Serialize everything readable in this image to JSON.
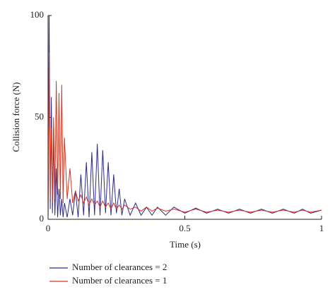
{
  "chart_data": {
    "type": "line",
    "xlabel": "Time (s)",
    "ylabel": "Collision force (N)",
    "x": [
      0,
      0.004,
      0.008,
      0.012,
      0.016,
      0.02,
      0.025,
      0.03,
      0.035,
      0.04,
      0.045,
      0.05,
      0.055,
      0.06,
      0.07,
      0.08,
      0.09,
      0.1,
      0.11,
      0.12,
      0.13,
      0.14,
      0.15,
      0.16,
      0.17,
      0.18,
      0.19,
      0.2,
      0.21,
      0.22,
      0.23,
      0.24,
      0.25,
      0.26,
      0.27,
      0.28,
      0.3,
      0.32,
      0.34,
      0.36,
      0.38,
      0.4,
      0.43,
      0.46,
      0.5,
      0.54,
      0.58,
      0.62,
      0.66,
      0.7,
      0.74,
      0.78,
      0.82,
      0.86,
      0.9,
      0.93,
      0.96,
      1
    ],
    "series": [
      {
        "name": "Number of clearances = 2",
        "color": "#2e2a8c",
        "values": [
          0,
          100,
          5,
          60,
          3,
          40,
          2,
          25,
          1,
          15,
          2,
          10,
          1,
          8,
          1,
          10,
          2,
          14,
          1,
          22,
          2,
          28,
          1,
          33,
          2,
          37,
          2,
          34,
          3,
          28,
          2,
          22,
          3,
          15,
          2,
          10,
          2,
          8,
          2,
          6,
          2,
          6,
          2,
          6,
          3,
          5.5,
          3,
          5,
          3,
          5,
          3,
          5,
          3,
          5,
          3,
          5,
          3,
          4.5
        ]
      },
      {
        "name": "Number of clearances = 1",
        "color": "#d8341e",
        "values": [
          0,
          82,
          10,
          45,
          8,
          50,
          10,
          68,
          12,
          62,
          10,
          66,
          8,
          40,
          10,
          25,
          8,
          14,
          9,
          12,
          8,
          11,
          7,
          10,
          7,
          9,
          6,
          9,
          6,
          8,
          5,
          8,
          5,
          7,
          5,
          7,
          5,
          6,
          4,
          6,
          4,
          5.5,
          4,
          5,
          3.5,
          5,
          3.5,
          4.5,
          3.5,
          4.5,
          3.5,
          4.5,
          3.5,
          4.5,
          3.5,
          4.5,
          3.5,
          4.5
        ]
      }
    ],
    "xlim": [
      0,
      1
    ],
    "xticks": [
      0,
      0.5,
      1
    ],
    "ylim": [
      0,
      100
    ],
    "yticks": [
      0,
      50,
      100
    ]
  }
}
